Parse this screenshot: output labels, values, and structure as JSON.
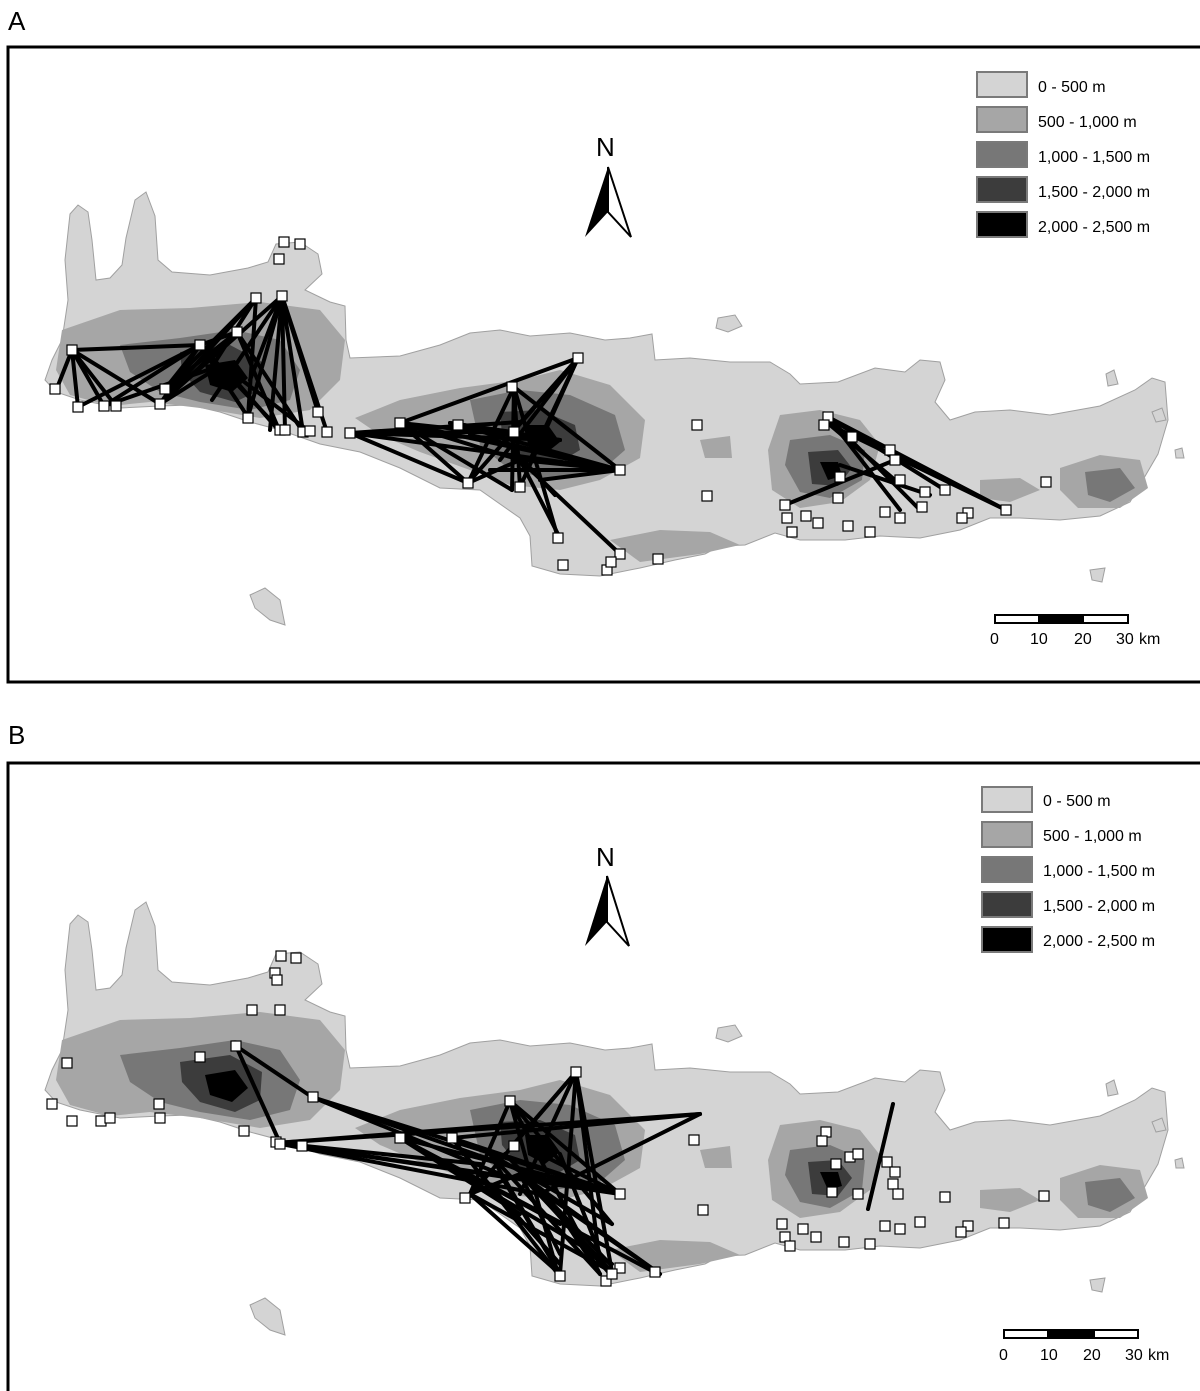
{
  "panels": [
    {
      "id": "A",
      "label": "A",
      "north_label": "N",
      "legend": [
        {
          "label": "0 - 500 m",
          "color": "#d4d4d4"
        },
        {
          "label": "500 - 1,000 m",
          "color": "#a6a6a6"
        },
        {
          "label": "1,000 - 1,500 m",
          "color": "#777777"
        },
        {
          "label": "1,500 - 2,000 m",
          "color": "#3c3c3c"
        },
        {
          "label": "2,000 - 2,500 m",
          "color": "#000000"
        }
      ],
      "scale": {
        "ticks": [
          "0",
          "10",
          "20",
          "30"
        ],
        "unit": "km"
      }
    },
    {
      "id": "B",
      "label": "B",
      "north_label": "N",
      "legend": [
        {
          "label": "0 - 500 m",
          "color": "#d4d4d4"
        },
        {
          "label": "500 - 1,000 m",
          "color": "#a6a6a6"
        },
        {
          "label": "1,000 - 1,500 m",
          "color": "#777777"
        },
        {
          "label": "1,500 - 2,000 m",
          "color": "#3c3c3c"
        },
        {
          "label": "2,000 - 2,500 m",
          "color": "#000000"
        }
      ],
      "scale": {
        "ticks": [
          "0",
          "10",
          "20",
          "30"
        ],
        "unit": "km"
      }
    }
  ],
  "colors": {
    "land": "#d4d4d4",
    "mid": "#a6a6a6",
    "high": "#777777",
    "very_high": "#3c3c3c",
    "peak": "#000000",
    "site_marker_fill": "#ffffff",
    "connection_line": "#000000"
  }
}
